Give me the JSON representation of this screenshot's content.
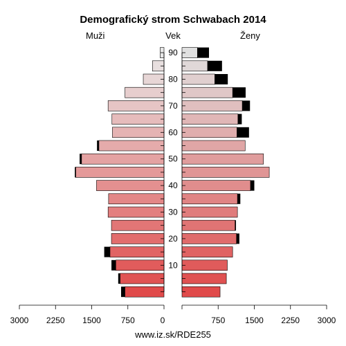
{
  "chart_data": {
    "type": "bar",
    "title": "Demografický strom Schwabach 2014",
    "left_label": "Muži",
    "center_label": "Vek",
    "right_label": "Ženy",
    "footer": "www.iz.sk/RDE255",
    "age_groups": [
      "0-4",
      "5-9",
      "10-14",
      "15-19",
      "20-24",
      "25-29",
      "30-34",
      "35-39",
      "40-44",
      "45-49",
      "50-54",
      "55-59",
      "60-64",
      "65-69",
      "70-74",
      "75-79",
      "80-84",
      "85-89",
      "90+"
    ],
    "age_ticks": [
      "10",
      "20",
      "30",
      "40",
      "50",
      "60",
      "70",
      "80",
      "90"
    ],
    "x_ticks": [
      "3000",
      "2250",
      "1500",
      "750",
      "0",
      "750",
      "1500",
      "2250",
      "3000"
    ],
    "xlim": [
      0,
      3000
    ],
    "series": [
      {
        "name": "Muži",
        "values": [
          810,
          910,
          1000,
          1120,
          1090,
          1090,
          1160,
          1150,
          1400,
          1830,
          1710,
          1350,
          1070,
          1080,
          1160,
          810,
          430,
          240,
          80
        ]
      },
      {
        "name": "Ženy",
        "values": [
          790,
          920,
          940,
          1050,
          1130,
          1100,
          1150,
          1150,
          1420,
          1810,
          1690,
          1310,
          1140,
          1160,
          1250,
          1050,
          680,
          530,
          320
        ]
      }
    ],
    "excess": [
      {
        "name": "Muži",
        "values": [
          80,
          40,
          90,
          120,
          0,
          0,
          0,
          0,
          0,
          20,
          40,
          40,
          0,
          0,
          0,
          0,
          0,
          0,
          0
        ]
      },
      {
        "name": "Ženy",
        "values": [
          0,
          0,
          0,
          0,
          60,
          20,
          0,
          60,
          80,
          0,
          0,
          0,
          250,
          80,
          160,
          270,
          270,
          300,
          240
        ]
      }
    ]
  }
}
